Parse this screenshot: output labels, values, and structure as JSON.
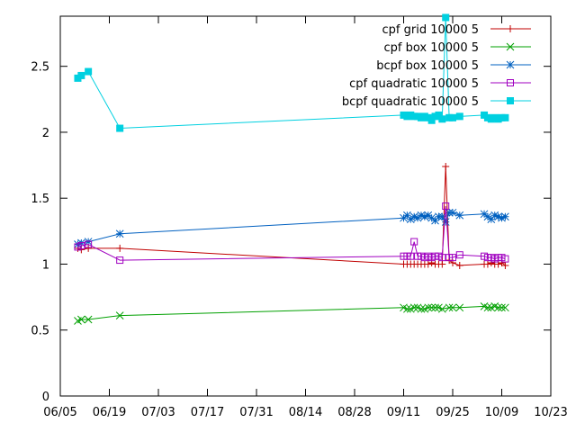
{
  "chart_data": {
    "type": "line",
    "x_axis": {
      "scale": "date",
      "ticks": [
        "06/05",
        "06/19",
        "07/03",
        "07/17",
        "07/31",
        "08/14",
        "08/28",
        "09/11",
        "09/25",
        "10/09",
        "10/23"
      ],
      "range_days": [
        0,
        140
      ]
    },
    "y_axis": {
      "ticks": [
        "0",
        "0.5",
        "1",
        "1.5",
        "2",
        "2.5"
      ],
      "ylim": [
        0,
        2.88
      ]
    },
    "grid": false,
    "legend_position": "top-right",
    "series": [
      {
        "name": "cpf grid 10000 5",
        "color": "#c00000",
        "marker": "plus",
        "points": [
          [
            "06/10",
            1.12
          ],
          [
            "06/11",
            1.11
          ],
          [
            "06/13",
            1.12
          ],
          [
            "06/22",
            1.12
          ],
          [
            "09/11",
            1.0
          ],
          [
            "09/12",
            1.0
          ],
          [
            "09/13",
            1.0
          ],
          [
            "09/14",
            1.0
          ],
          [
            "09/15",
            1.0
          ],
          [
            "09/16",
            1.0
          ],
          [
            "09/17",
            1.0
          ],
          [
            "09/18",
            1.0
          ],
          [
            "09/19",
            1.01
          ],
          [
            "09/20",
            1.0
          ],
          [
            "09/21",
            1.0
          ],
          [
            "09/22",
            1.0
          ],
          [
            "09/23",
            1.74
          ],
          [
            "09/24",
            1.03
          ],
          [
            "09/25",
            1.01
          ],
          [
            "09/27",
            0.99
          ],
          [
            "10/04",
            1.0
          ],
          [
            "10/05",
            1.0
          ],
          [
            "10/06",
            1.01
          ],
          [
            "10/07",
            1.0
          ],
          [
            "10/08",
            1.0
          ],
          [
            "10/09",
            1.01
          ],
          [
            "10/10",
            0.99
          ]
        ]
      },
      {
        "name": "cpf box 10000 5",
        "color": "#00a000",
        "marker": "cross",
        "points": [
          [
            "06/10",
            0.57
          ],
          [
            "06/11",
            0.58
          ],
          [
            "06/13",
            0.58
          ],
          [
            "06/22",
            0.61
          ],
          [
            "09/11",
            0.67
          ],
          [
            "09/12",
            0.66
          ],
          [
            "09/13",
            0.66
          ],
          [
            "09/14",
            0.67
          ],
          [
            "09/15",
            0.67
          ],
          [
            "09/16",
            0.66
          ],
          [
            "09/17",
            0.66
          ],
          [
            "09/18",
            0.67
          ],
          [
            "09/19",
            0.67
          ],
          [
            "09/20",
            0.67
          ],
          [
            "09/21",
            0.67
          ],
          [
            "09/22",
            0.66
          ],
          [
            "09/24",
            0.67
          ],
          [
            "09/25",
            0.67
          ],
          [
            "09/27",
            0.67
          ],
          [
            "10/04",
            0.68
          ],
          [
            "10/05",
            0.67
          ],
          [
            "10/06",
            0.67
          ],
          [
            "10/07",
            0.68
          ],
          [
            "10/08",
            0.67
          ],
          [
            "10/09",
            0.67
          ],
          [
            "10/10",
            0.67
          ]
        ]
      },
      {
        "name": "bcpf box 10000 5",
        "color": "#0060c0",
        "marker": "star",
        "points": [
          [
            "06/10",
            1.15
          ],
          [
            "06/11",
            1.16
          ],
          [
            "06/13",
            1.17
          ],
          [
            "06/22",
            1.23
          ],
          [
            "09/11",
            1.35
          ],
          [
            "09/12",
            1.37
          ],
          [
            "09/13",
            1.34
          ],
          [
            "09/14",
            1.36
          ],
          [
            "09/15",
            1.35
          ],
          [
            "09/16",
            1.37
          ],
          [
            "09/17",
            1.36
          ],
          [
            "09/18",
            1.37
          ],
          [
            "09/19",
            1.35
          ],
          [
            "09/20",
            1.33
          ],
          [
            "09/21",
            1.36
          ],
          [
            "09/22",
            1.36
          ],
          [
            "09/23",
            1.32
          ],
          [
            "09/24",
            1.39
          ],
          [
            "09/25",
            1.39
          ],
          [
            "09/27",
            1.37
          ],
          [
            "10/04",
            1.38
          ],
          [
            "10/05",
            1.36
          ],
          [
            "10/06",
            1.34
          ],
          [
            "10/07",
            1.37
          ],
          [
            "10/08",
            1.36
          ],
          [
            "10/09",
            1.35
          ],
          [
            "10/10",
            1.36
          ]
        ]
      },
      {
        "name": "cpf quadratic 10000 5",
        "color": "#a000c0",
        "marker": "square-open",
        "points": [
          [
            "06/10",
            1.13
          ],
          [
            "06/11",
            1.14
          ],
          [
            "06/13",
            1.15
          ],
          [
            "06/22",
            1.03
          ],
          [
            "09/11",
            1.06
          ],
          [
            "09/12",
            1.06
          ],
          [
            "09/13",
            1.06
          ],
          [
            "09/14",
            1.17
          ],
          [
            "09/15",
            1.06
          ],
          [
            "09/16",
            1.06
          ],
          [
            "09/17",
            1.05
          ],
          [
            "09/18",
            1.06
          ],
          [
            "09/19",
            1.05
          ],
          [
            "09/20",
            1.06
          ],
          [
            "09/21",
            1.06
          ],
          [
            "09/22",
            1.05
          ],
          [
            "09/23",
            1.44
          ],
          [
            "09/24",
            1.05
          ],
          [
            "09/25",
            1.05
          ],
          [
            "09/27",
            1.07
          ],
          [
            "10/04",
            1.06
          ],
          [
            "10/05",
            1.05
          ],
          [
            "10/06",
            1.05
          ],
          [
            "10/07",
            1.04
          ],
          [
            "10/08",
            1.05
          ],
          [
            "10/09",
            1.05
          ],
          [
            "10/10",
            1.04
          ]
        ]
      },
      {
        "name": "bcpf quadratic 10000 5",
        "color": "#00d0e0",
        "marker": "square-filled",
        "points": [
          [
            "06/10",
            2.41
          ],
          [
            "06/11",
            2.43
          ],
          [
            "06/13",
            2.46
          ],
          [
            "06/22",
            2.03
          ],
          [
            "09/11",
            2.13
          ],
          [
            "09/12",
            2.12
          ],
          [
            "09/13",
            2.13
          ],
          [
            "09/14",
            2.12
          ],
          [
            "09/15",
            2.12
          ],
          [
            "09/16",
            2.11
          ],
          [
            "09/17",
            2.12
          ],
          [
            "09/18",
            2.11
          ],
          [
            "09/19",
            2.09
          ],
          [
            "09/20",
            2.12
          ],
          [
            "09/21",
            2.13
          ],
          [
            "09/22",
            2.1
          ],
          [
            "09/23",
            2.87
          ],
          [
            "09/24",
            2.11
          ],
          [
            "09/25",
            2.11
          ],
          [
            "09/27",
            2.12
          ],
          [
            "10/04",
            2.13
          ],
          [
            "10/05",
            2.11
          ],
          [
            "10/06",
            2.1
          ],
          [
            "10/07",
            2.11
          ],
          [
            "10/08",
            2.1
          ],
          [
            "10/09",
            2.11
          ],
          [
            "10/10",
            2.11
          ]
        ]
      }
    ]
  }
}
